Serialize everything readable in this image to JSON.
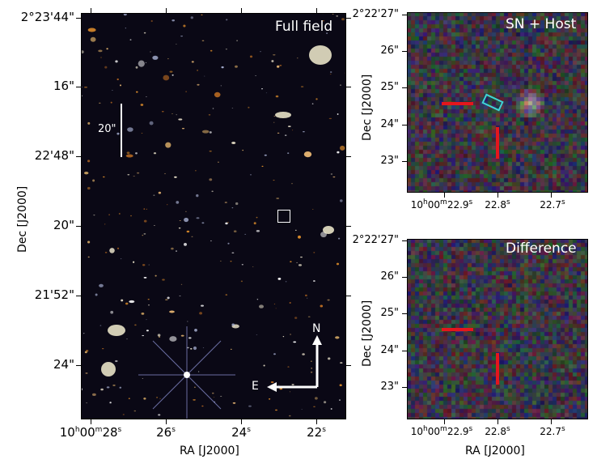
{
  "panels": {
    "full": {
      "title": "Full field",
      "scale_bar_label": "20\"",
      "compass_north": "N",
      "compass_east": "E",
      "ytick_labels": [
        "2°23'44\"",
        "16\"",
        "22'48\"",
        "20\"",
        "21'52\"",
        "24\""
      ],
      "xtick_labels": {
        "first_main": "10",
        "first_h": "h",
        "first_mid": "00",
        "first_m": "m",
        "first_s_val": "28",
        "first_s": "s",
        "t26": "26",
        "t24": "24",
        "t22": "22",
        "s": "s"
      },
      "xlabel": "RA [J2000]",
      "ylabel": "Dec [J2000]"
    },
    "sn_host": {
      "title": "SN + Host",
      "ytick_labels": [
        "2°22'27\"",
        "26\"",
        "25\"",
        "24\"",
        "23\""
      ],
      "xtick_labels": {
        "first": "10",
        "h": "h",
        "mid": "00",
        "m": "m",
        "sval": "22.9",
        "s": "s",
        "t2": "22.8",
        "t3": "22.7"
      },
      "ylabel": "Dec [J2000]"
    },
    "difference": {
      "title": "Difference",
      "ytick_labels": [
        "2°22'27\"",
        "26\"",
        "25\"",
        "24\"",
        "23\""
      ],
      "xtick_labels": {
        "first": "10",
        "h": "h",
        "mid": "00",
        "m": "m",
        "sval": "22.9",
        "s": "s",
        "t2": "22.8",
        "t3": "22.7"
      },
      "xlabel": "RA [J2000]",
      "ylabel": "Dec [J2000]"
    }
  },
  "colors": {
    "marker": "#e4161d",
    "outline": "#3fd4d4",
    "compass": "#ffffff",
    "field_bg": "#0a0815"
  }
}
